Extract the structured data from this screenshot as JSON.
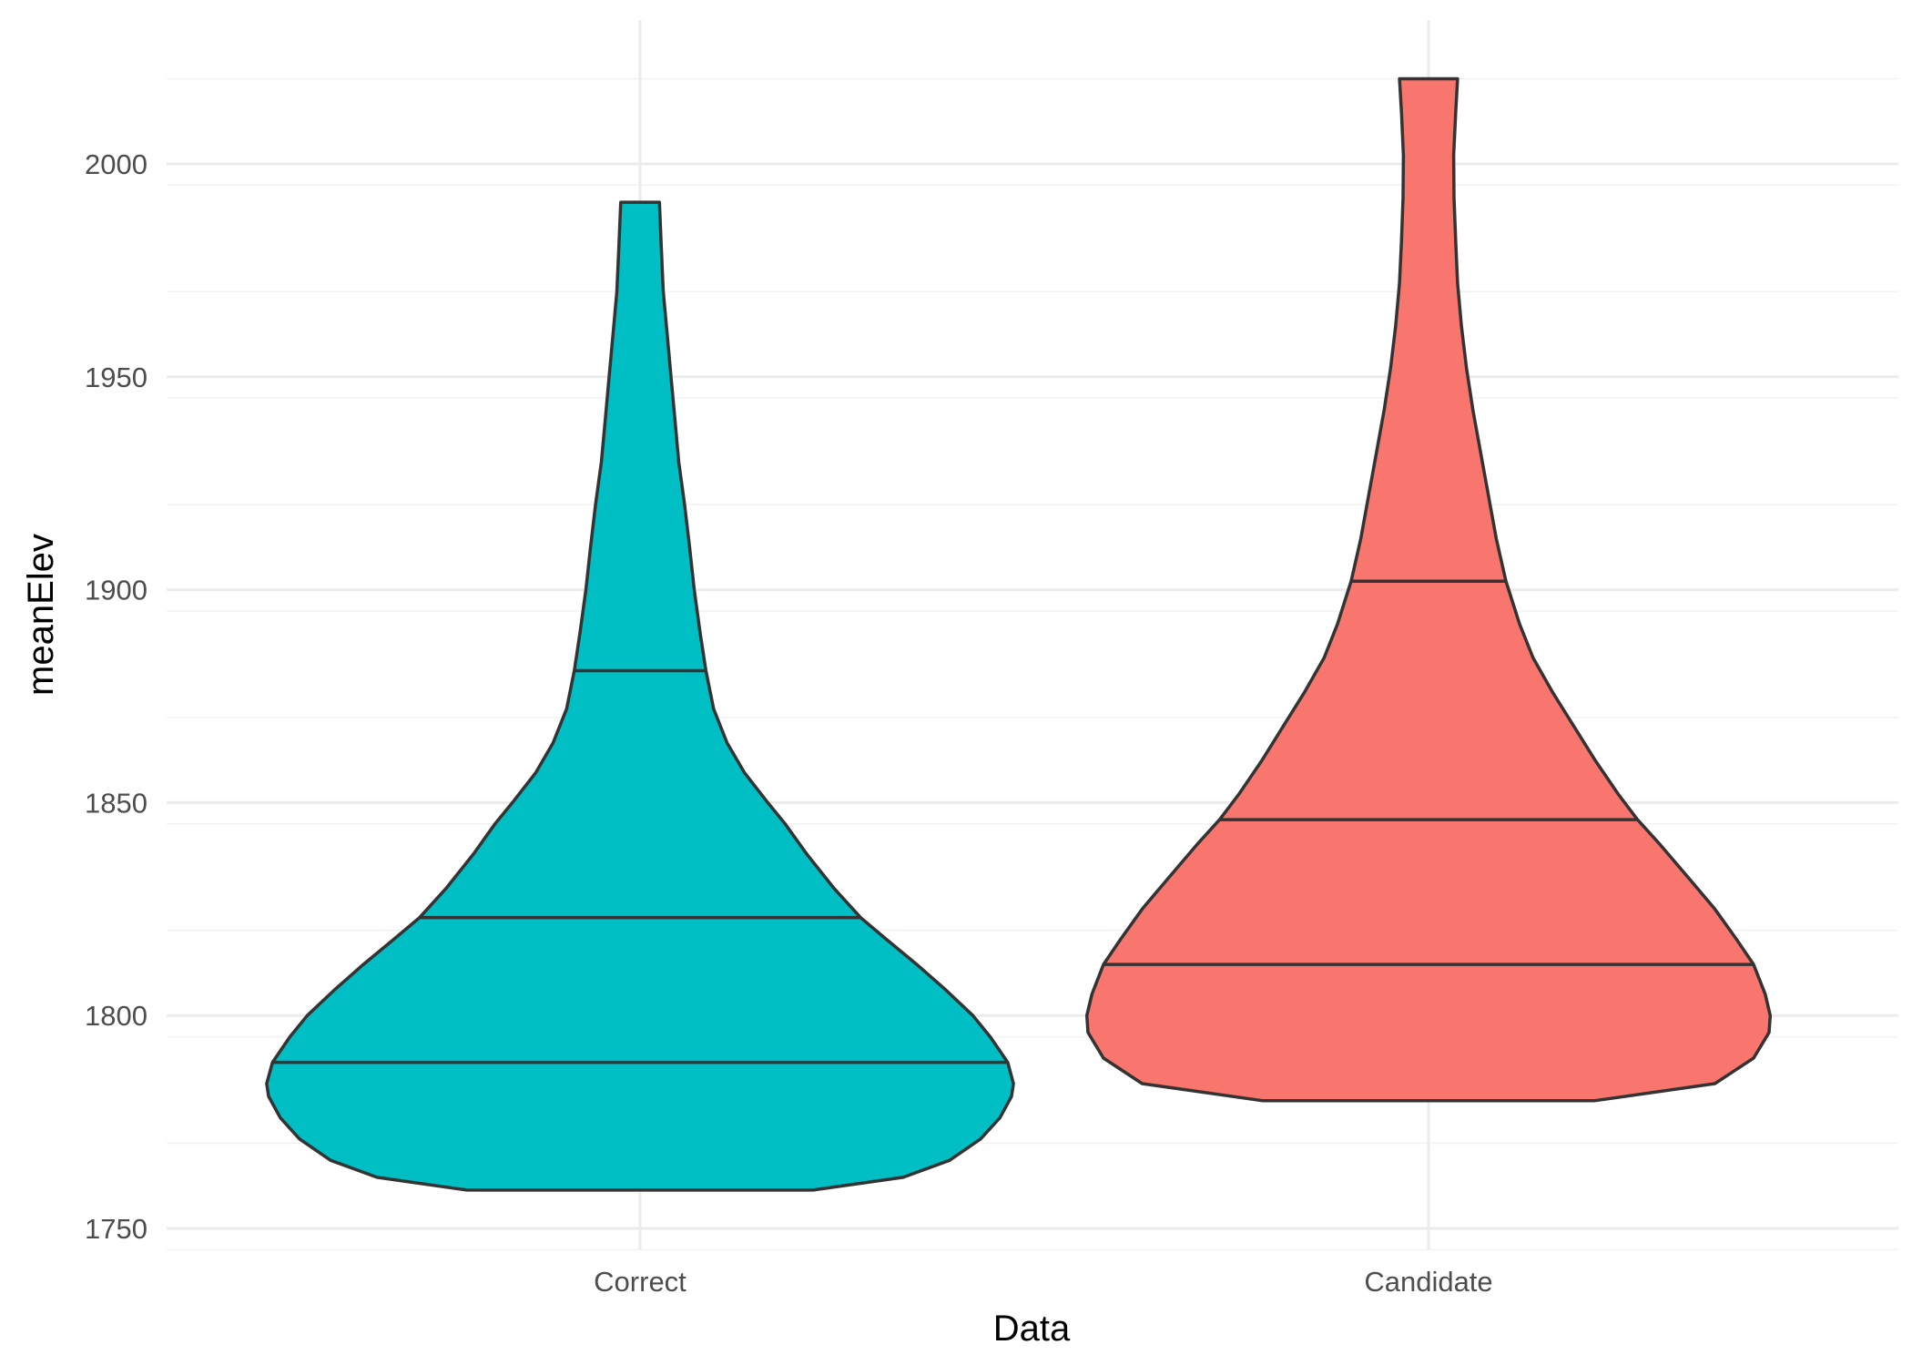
{
  "chart_data": {
    "type": "violin",
    "xlabel": "Data",
    "ylabel": "meanElev",
    "ylim": [
      1745,
      2025
    ],
    "yticks": [
      1750,
      1800,
      1850,
      1900,
      1950,
      2000
    ],
    "categories": [
      "Correct",
      "Candidate"
    ],
    "grid": true,
    "legend": "none",
    "series": [
      {
        "category": "Correct",
        "color": "#00BFC4",
        "min": 1759,
        "max": 1991,
        "quantiles": [
          1789,
          1823,
          1881
        ],
        "density_profile": [
          [
            1759,
            0.447
          ],
          [
            1762,
            0.68
          ],
          [
            1766,
            0.8
          ],
          [
            1771,
            0.88
          ],
          [
            1776,
            0.93
          ],
          [
            1781,
            0.96
          ],
          [
            1784,
            0.965
          ],
          [
            1789,
            0.95
          ],
          [
            1795,
            0.905
          ],
          [
            1800,
            0.86
          ],
          [
            1806,
            0.79
          ],
          [
            1812,
            0.715
          ],
          [
            1818,
            0.635
          ],
          [
            1823,
            0.57
          ],
          [
            1830,
            0.5
          ],
          [
            1838,
            0.43
          ],
          [
            1845,
            0.375
          ],
          [
            1850,
            0.33
          ],
          [
            1857,
            0.27
          ],
          [
            1864,
            0.225
          ],
          [
            1872,
            0.19
          ],
          [
            1881,
            0.17
          ],
          [
            1890,
            0.155
          ],
          [
            1900,
            0.14
          ],
          [
            1910,
            0.128
          ],
          [
            1920,
            0.115
          ],
          [
            1930,
            0.1
          ],
          [
            1940,
            0.09
          ],
          [
            1950,
            0.08
          ],
          [
            1960,
            0.07
          ],
          [
            1970,
            0.06
          ],
          [
            1980,
            0.055
          ],
          [
            1991,
            0.05
          ]
        ]
      },
      {
        "category": "Candidate",
        "color": "#F8766D",
        "min": 1780,
        "max": 2020,
        "quantiles": [
          1812,
          1846,
          1902
        ],
        "density_profile": [
          [
            1780,
            0.43
          ],
          [
            1784,
            0.74
          ],
          [
            1790,
            0.84
          ],
          [
            1796,
            0.88
          ],
          [
            1800,
            0.883
          ],
          [
            1805,
            0.87
          ],
          [
            1812,
            0.84
          ],
          [
            1818,
            0.795
          ],
          [
            1825,
            0.74
          ],
          [
            1832,
            0.675
          ],
          [
            1840,
            0.6
          ],
          [
            1846,
            0.54
          ],
          [
            1852,
            0.49
          ],
          [
            1860,
            0.43
          ],
          [
            1868,
            0.375
          ],
          [
            1876,
            0.32
          ],
          [
            1884,
            0.27
          ],
          [
            1892,
            0.235
          ],
          [
            1902,
            0.2
          ],
          [
            1912,
            0.175
          ],
          [
            1922,
            0.155
          ],
          [
            1932,
            0.135
          ],
          [
            1942,
            0.115
          ],
          [
            1952,
            0.098
          ],
          [
            1962,
            0.085
          ],
          [
            1972,
            0.075
          ],
          [
            1982,
            0.07
          ],
          [
            1992,
            0.066
          ],
          [
            2002,
            0.065
          ],
          [
            2012,
            0.07
          ],
          [
            2020,
            0.075
          ]
        ]
      }
    ]
  }
}
